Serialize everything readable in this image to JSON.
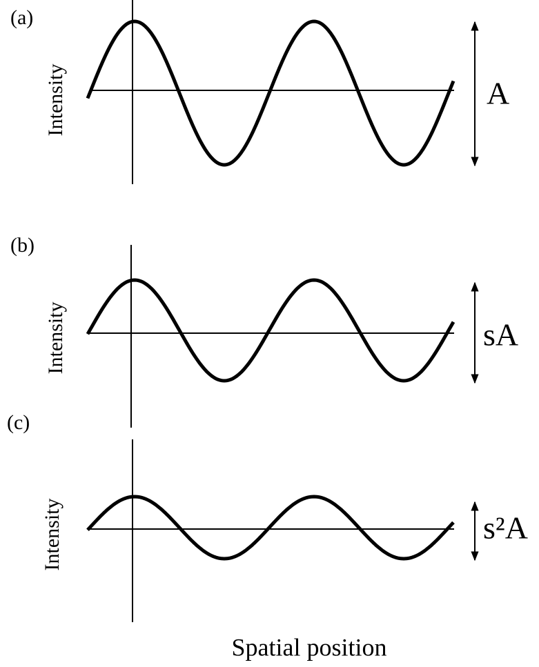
{
  "panels": [
    {
      "label": "(a)",
      "y_label": "Intensity",
      "amplitude_label": "A"
    },
    {
      "label": "(b)",
      "y_label": "Intensity",
      "amplitude_label": "sA"
    },
    {
      "label": "(c)",
      "y_label": "Intensity",
      "amplitude_label": "s²A"
    }
  ],
  "x_label": "Spatial position"
}
